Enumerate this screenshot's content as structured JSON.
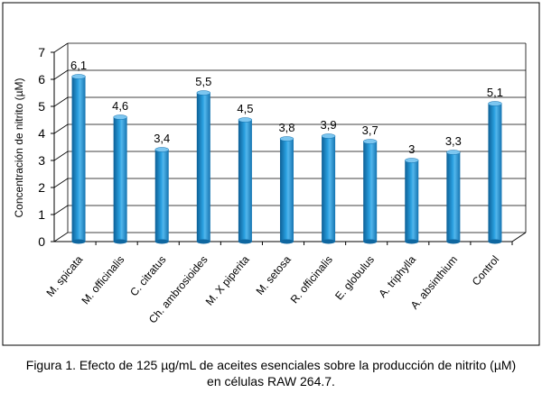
{
  "chart_data": {
    "type": "bar",
    "ylabel": "Concentración de nitrito (µM)",
    "ylim": [
      0,
      7
    ],
    "yticks": [
      0,
      1,
      2,
      3,
      4,
      5,
      6,
      7
    ],
    "grid": true,
    "legend": "none",
    "bar_color": "#1e8fd0",
    "categories": [
      "M. spicata",
      "M. officinalis",
      "C. citratus",
      "Ch. ambrosioides",
      "M. X piperita",
      "M. setosa",
      "R. officinalis",
      "E. globulus",
      "A. triphylla",
      "A. absinthium",
      "Control"
    ],
    "values": [
      6.1,
      4.6,
      3.4,
      5.5,
      4.5,
      3.8,
      3.9,
      3.7,
      3.0,
      3.3,
      5.1
    ],
    "data_labels": [
      "6,1",
      "4,6",
      "3,4",
      "5,5",
      "4,5",
      "3,8",
      "3,9",
      "3,7",
      "3",
      "3,3",
      "5,1"
    ]
  },
  "caption": {
    "line1": "Figura 1. Efecto de 125 µg/mL de aceites esenciales sobre la producción de nitrito (µM)",
    "line2": "en células RAW 264.7."
  }
}
